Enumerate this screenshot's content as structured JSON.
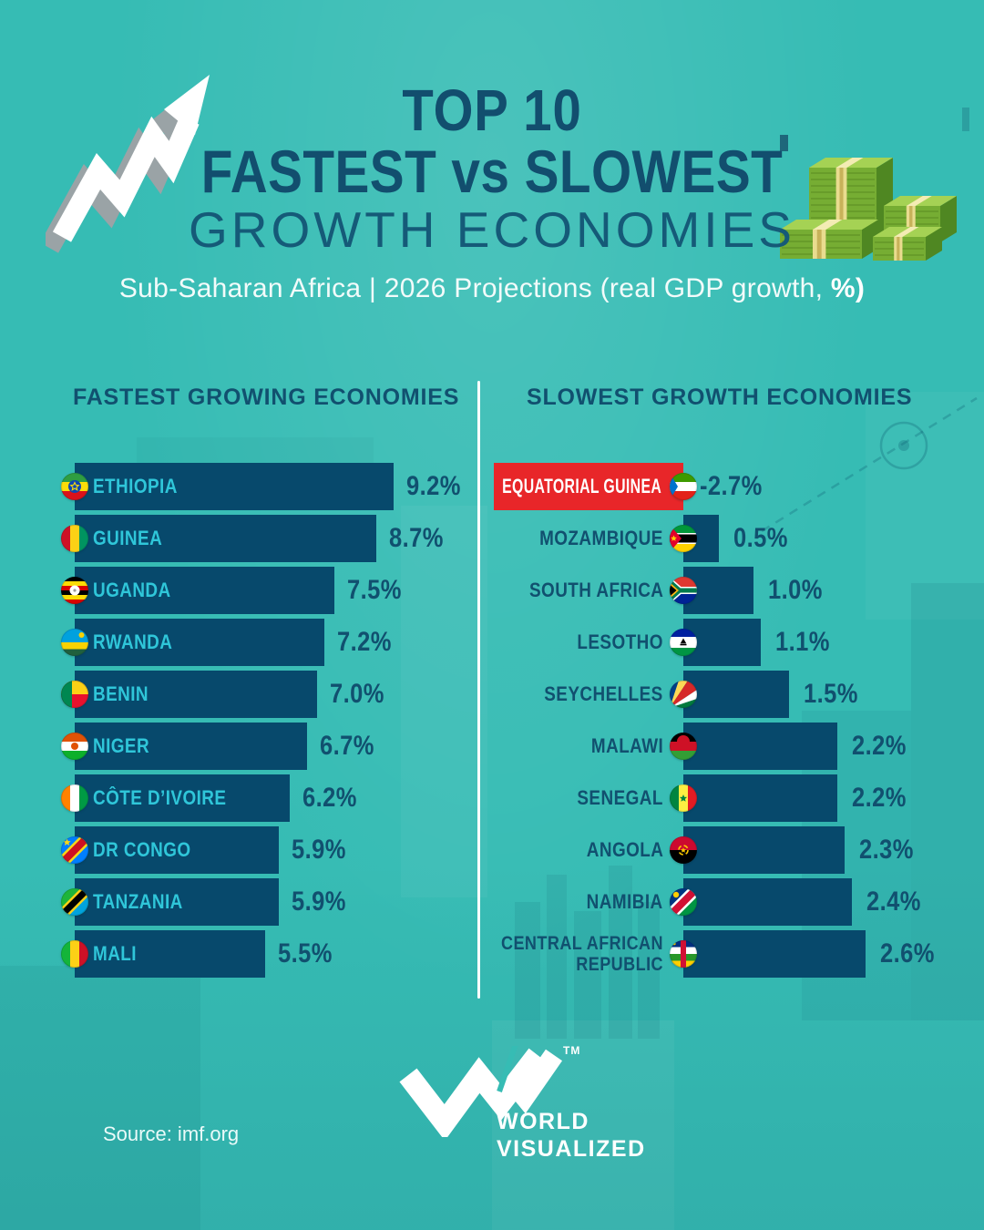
{
  "title": {
    "line1": "TOP 10",
    "line2": "FASTEST vs SLOWEST",
    "line3": "GROWTH ECONOMIES"
  },
  "subtitle": {
    "text": "Sub-Saharan Africa | 2026 Projections (real GDP growth, ",
    "bold_suffix": "%)"
  },
  "columns": {
    "left": {
      "header": "FASTEST GROWING ECONOMIES",
      "items": [
        {
          "label": "ETHIOPIA",
          "flag": "ethiopia",
          "value": 9.2,
          "value_label": "9.2%"
        },
        {
          "label": "GUINEA",
          "flag": "guinea",
          "value": 8.7,
          "value_label": "8.7%"
        },
        {
          "label": "UGANDA",
          "flag": "uganda",
          "value": 7.5,
          "value_label": "7.5%"
        },
        {
          "label": "RWANDA",
          "flag": "rwanda",
          "value": 7.2,
          "value_label": "7.2%"
        },
        {
          "label": "BENIN",
          "flag": "benin",
          "value": 7.0,
          "value_label": "7.0%"
        },
        {
          "label": "NIGER",
          "flag": "niger",
          "value": 6.7,
          "value_label": "6.7%"
        },
        {
          "label": "CÔTE D’IVOIRE",
          "flag": "cote-divoire",
          "value": 6.2,
          "value_label": "6.2%"
        },
        {
          "label": "DR CONGO",
          "flag": "dr-congo",
          "value": 5.9,
          "value_label": "5.9%"
        },
        {
          "label": "TANZANIA",
          "flag": "tanzania",
          "value": 5.9,
          "value_label": "5.9%"
        },
        {
          "label": "MALI",
          "flag": "mali",
          "value": 5.5,
          "value_label": "5.5%"
        }
      ]
    },
    "right": {
      "header": "SLOWEST GROWTH ECONOMIES",
      "items": [
        {
          "label": "EQUATORIAL GUINEA",
          "flag": "equatorial-guinea",
          "value": -2.7,
          "value_label": "-2.7%",
          "highlight": true
        },
        {
          "label": "MOZAMBIQUE",
          "flag": "mozambique",
          "value": 0.5,
          "value_label": "0.5%"
        },
        {
          "label": "SOUTH AFRICA",
          "flag": "south-africa",
          "value": 1.0,
          "value_label": "1.0%"
        },
        {
          "label": "LESOTHO",
          "flag": "lesotho",
          "value": 1.1,
          "value_label": "1.1%"
        },
        {
          "label": "SEYCHELLES",
          "flag": "seychelles",
          "value": 1.5,
          "value_label": "1.5%"
        },
        {
          "label": "MALAWI",
          "flag": "malawi",
          "value": 2.2,
          "value_label": "2.2%"
        },
        {
          "label": "SENEGAL",
          "flag": "senegal",
          "value": 2.2,
          "value_label": "2.2%"
        },
        {
          "label": "ANGOLA",
          "flag": "angola",
          "value": 2.3,
          "value_label": "2.3%"
        },
        {
          "label": "NAMIBIA",
          "flag": "namibia",
          "value": 2.4,
          "value_label": "2.4%"
        },
        {
          "label": "CENTRAL AFRICAN\nREPUBLIC",
          "flag": "central-african-republic",
          "value": 2.6,
          "value_label": "2.6%"
        }
      ]
    }
  },
  "footer": {
    "source": "Source: imf.org",
    "logo_line1": "WORLD",
    "logo_line2": "VISUALIZED",
    "tm": "TM"
  },
  "colors": {
    "background": "#36bcb4",
    "bar_navy": "#07496c",
    "text_navy": "#11506f",
    "label_cyan": "#2fc6d9",
    "highlight_red": "#e82629",
    "divider_white": "#ffffff"
  },
  "chart_data": {
    "type": "bar",
    "orientation": "horizontal",
    "unit": "%",
    "title": "TOP 10 FASTEST vs SLOWEST GROWTH ECONOMIES",
    "subtitle": "Sub-Saharan Africa | 2026 Projections (real GDP growth, %)",
    "source": "imf.org",
    "legend_position": "none",
    "series": [
      {
        "name": "FASTEST GROWING ECONOMIES",
        "categories": [
          "Ethiopia",
          "Guinea",
          "Uganda",
          "Rwanda",
          "Benin",
          "Niger",
          "Côte d’Ivoire",
          "DR Congo",
          "Tanzania",
          "Mali"
        ],
        "values": [
          9.2,
          8.7,
          7.5,
          7.2,
          7.0,
          6.7,
          6.2,
          5.9,
          5.9,
          5.5
        ]
      },
      {
        "name": "SLOWEST GROWTH ECONOMIES",
        "categories": [
          "Equatorial Guinea",
          "Mozambique",
          "South Africa",
          "Lesotho",
          "Seychelles",
          "Malawi",
          "Senegal",
          "Angola",
          "Namibia",
          "Central African Republic"
        ],
        "values": [
          -2.7,
          0.5,
          1.0,
          1.1,
          1.5,
          2.2,
          2.2,
          2.3,
          2.4,
          2.6
        ]
      }
    ]
  }
}
